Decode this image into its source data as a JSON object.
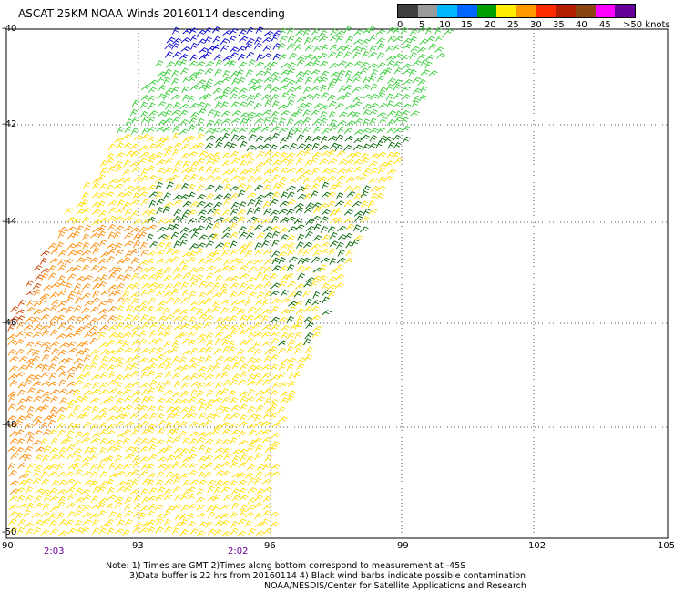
{
  "title": "ASCAT 25KM NOAA Winds 20160114 descending",
  "legend": {
    "labels": [
      "0",
      "5",
      "10",
      "15",
      "20",
      "25",
      "30",
      "35",
      "40",
      "45",
      ">50 knots"
    ],
    "colors": [
      "#404040",
      "#9a9a9a",
      "#00b8ff",
      "#0066ff",
      "#00a000",
      "#ffee00",
      "#ff9900",
      "#ff2a00",
      "#b02000",
      "#8b4513",
      "#ff00ff",
      "#660099"
    ]
  },
  "lat_labels": [
    "-40",
    "-42",
    "-44",
    "-46",
    "-48",
    "-50"
  ],
  "lon_labels": [
    "90",
    "93",
    "96",
    "99",
    "102",
    "105"
  ],
  "time_labels": [
    "2:03",
    "2:02"
  ],
  "notes": {
    "line1": "Note: 1) Times are GMT 2)Times along bottom correspond to measurement at -45S",
    "line2": "3)Data buffer is 22 hrs from 20160114 4) Black wind barbs indicate possible contamination",
    "line3": "NOAA/NESDIS/Center for Satellite Applications and Research"
  },
  "wind_colors": {
    "blue": "#0000cc",
    "light_green": "#33cc33",
    "dark_green": "#006600",
    "yellow": "#ffdd00",
    "orange": "#ff8800",
    "dark_orange": "#cc4400"
  }
}
